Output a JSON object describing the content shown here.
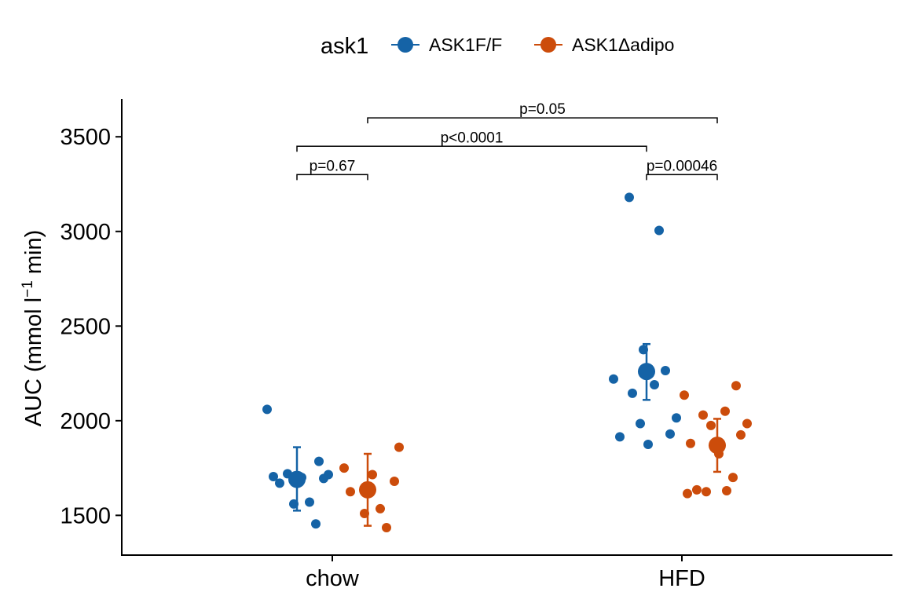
{
  "chart_data": {
    "type": "scatter",
    "legend": {
      "title": "ask1",
      "entries": [
        {
          "key": "f",
          "label": "ASK1F/F"
        },
        {
          "key": "d",
          "label": "ASK1Δadipo"
        }
      ],
      "placement": "top"
    },
    "colors": {
      "f": "#1563A6",
      "d": "#CC4C0B"
    },
    "xlabel": "",
    "ylabel": "AUC (mmol l",
    "ylabel_sup": "−1",
    "ylabel_tail": " min)",
    "categories": [
      "chow",
      "HFD"
    ],
    "ylim": [
      1290,
      3700
    ],
    "yticks": [
      1500,
      2000,
      2500,
      3000,
      3500
    ],
    "grid": false,
    "series": [
      {
        "key": "f",
        "points": [
          {
            "x": "chow",
            "y": 2060
          },
          {
            "x": "chow",
            "y": 1785
          },
          {
            "x": "chow",
            "y": 1720
          },
          {
            "x": "chow",
            "y": 1715
          },
          {
            "x": "chow",
            "y": 1705
          },
          {
            "x": "chow",
            "y": 1700
          },
          {
            "x": "chow",
            "y": 1695
          },
          {
            "x": "chow",
            "y": 1670
          },
          {
            "x": "chow",
            "y": 1570
          },
          {
            "x": "chow",
            "y": 1560
          },
          {
            "x": "chow",
            "y": 1455
          },
          {
            "x": "HFD",
            "y": 3180
          },
          {
            "x": "HFD",
            "y": 3005
          },
          {
            "x": "HFD",
            "y": 2375
          },
          {
            "x": "HFD",
            "y": 2265
          },
          {
            "x": "HFD",
            "y": 2220
          },
          {
            "x": "HFD",
            "y": 2190
          },
          {
            "x": "HFD",
            "y": 2145
          },
          {
            "x": "HFD",
            "y": 2015
          },
          {
            "x": "HFD",
            "y": 1985
          },
          {
            "x": "HFD",
            "y": 1930
          },
          {
            "x": "HFD",
            "y": 1915
          },
          {
            "x": "HFD",
            "y": 1875
          }
        ],
        "summary": [
          {
            "x": "chow",
            "mean": 1690,
            "lower": 1525,
            "upper": 1860
          },
          {
            "x": "HFD",
            "mean": 2260,
            "lower": 2110,
            "upper": 2405
          }
        ]
      },
      {
        "key": "d",
        "points": [
          {
            "x": "chow",
            "y": 1860
          },
          {
            "x": "chow",
            "y": 1750
          },
          {
            "x": "chow",
            "y": 1715
          },
          {
            "x": "chow",
            "y": 1680
          },
          {
            "x": "chow",
            "y": 1625
          },
          {
            "x": "chow",
            "y": 1535
          },
          {
            "x": "chow",
            "y": 1510
          },
          {
            "x": "chow",
            "y": 1435
          },
          {
            "x": "HFD",
            "y": 2185
          },
          {
            "x": "HFD",
            "y": 2135
          },
          {
            "x": "HFD",
            "y": 2050
          },
          {
            "x": "HFD",
            "y": 2030
          },
          {
            "x": "HFD",
            "y": 1985
          },
          {
            "x": "HFD",
            "y": 1975
          },
          {
            "x": "HFD",
            "y": 1925
          },
          {
            "x": "HFD",
            "y": 1880
          },
          {
            "x": "HFD",
            "y": 1825
          },
          {
            "x": "HFD",
            "y": 1700
          },
          {
            "x": "HFD",
            "y": 1635
          },
          {
            "x": "HFD",
            "y": 1630
          },
          {
            "x": "HFD",
            "y": 1625
          },
          {
            "x": "HFD",
            "y": 1615
          }
        ],
        "summary": [
          {
            "x": "chow",
            "mean": 1635,
            "lower": 1445,
            "upper": 1825
          },
          {
            "x": "HFD",
            "mean": 1870,
            "lower": 1730,
            "upper": 2010
          }
        ]
      }
    ],
    "comparisons": [
      {
        "from": {
          "x": "chow",
          "key": "f"
        },
        "to": {
          "x": "chow",
          "key": "d"
        },
        "y": 3300,
        "label": "p=0.67"
      },
      {
        "from": {
          "x": "HFD",
          "key": "f"
        },
        "to": {
          "x": "HFD",
          "key": "d"
        },
        "y": 3300,
        "label": "p=0.00046"
      },
      {
        "from": {
          "x": "chow",
          "key": "f"
        },
        "to": {
          "x": "HFD",
          "key": "f"
        },
        "y": 3450,
        "label": "p<0.0001"
      },
      {
        "from": {
          "x": "chow",
          "key": "d"
        },
        "to": {
          "x": "HFD",
          "key": "d"
        },
        "y": 3600,
        "label": "p=0.05"
      }
    ]
  }
}
